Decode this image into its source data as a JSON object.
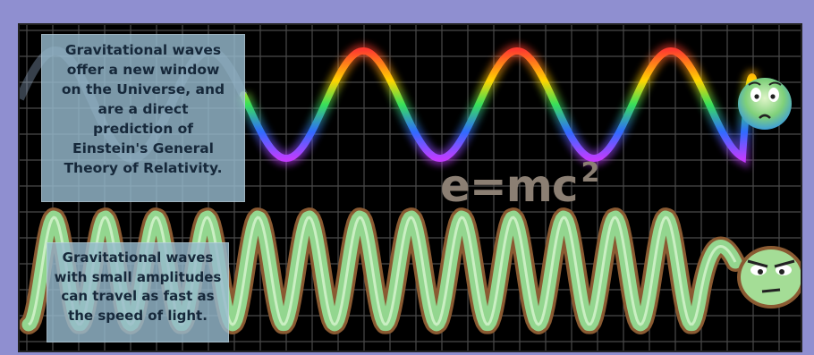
{
  "captions": {
    "top_lines": [
      "Gravitational waves",
      "offer a new window",
      "on the Universe, and",
      "are a direct",
      "prediction of",
      "Einstein's General",
      "Theory of Relativity."
    ],
    "bottom_lines": [
      "Gravitational waves",
      "with small amplitudes",
      "can travel as fast as",
      "the speed of light."
    ]
  },
  "formula": {
    "base": "e=mc",
    "exponent": "2"
  },
  "colors": {
    "border": "#8f8fd0",
    "panel": "#000000",
    "grid": "#4a4a4a",
    "green_wave_outline": "#8a5a32",
    "green_wave_fill": "#93d68f",
    "rainbow": [
      "#ff3b2f",
      "#ffd400",
      "#37e05a",
      "#2f6bff",
      "#c23cff"
    ]
  },
  "icons": [
    "worried-face-icon",
    "grumpy-face-icon"
  ]
}
